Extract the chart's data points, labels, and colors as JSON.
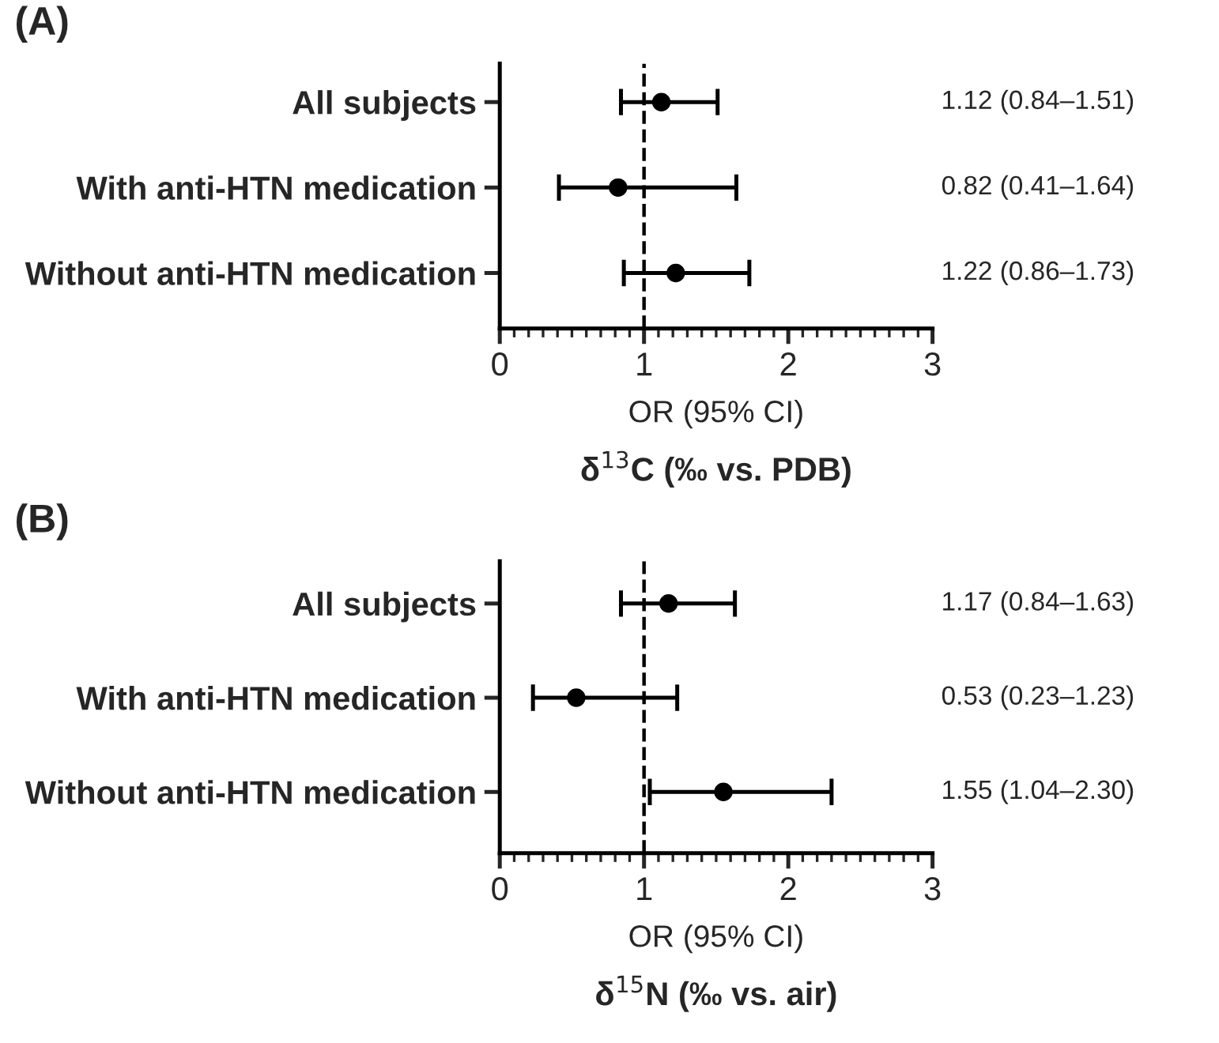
{
  "chart_data": [
    {
      "type": "scatter",
      "title": "(A)",
      "orientation": "horizontal",
      "categories": [
        "All subjects",
        "With anti-HTN medication",
        "Without anti-HTN medication"
      ],
      "series": [
        {
          "color": "#000000",
          "values": [
            1.12,
            0.82,
            1.22
          ],
          "errors": [
            [
              0.84,
              1.51
            ],
            [
              0.41,
              1.64
            ],
            [
              0.86,
              1.73
            ]
          ],
          "value_labels": [
            "1.12 (0.84–1.51)",
            "0.82 (0.41–1.64)",
            "1.22 (0.86–1.73)"
          ]
        }
      ],
      "xlim": [
        0,
        3
      ],
      "xticks": [
        0,
        1,
        2,
        3
      ],
      "xlabel": "OR (95% CI)",
      "marker": "circle",
      "grid": false,
      "legend": false,
      "ref_lines": [
        {
          "axis": "x",
          "value": 1,
          "line_style": "dashed",
          "color": "#000000"
        }
      ],
      "annotations": [
        "δ$^{13}$C (‰ vs. PDB)"
      ]
    },
    {
      "type": "scatter",
      "title": "(B)",
      "orientation": "horizontal",
      "categories": [
        "All subjects",
        "With anti-HTN medication",
        "Without anti-HTN medication"
      ],
      "series": [
        {
          "color": "#000000",
          "values": [
            1.17,
            0.53,
            1.55
          ],
          "errors": [
            [
              0.84,
              1.63
            ],
            [
              0.23,
              1.23
            ],
            [
              1.04,
              2.3
            ]
          ],
          "value_labels": [
            "1.17 (0.84–1.63)",
            "0.53 (0.23–1.23)",
            "1.55 (1.04–2.30)"
          ]
        }
      ],
      "xlim": [
        0,
        3
      ],
      "xticks": [
        0,
        1,
        2,
        3
      ],
      "xlabel": "OR (95% CI)",
      "marker": "circle",
      "grid": false,
      "legend": false,
      "ref_lines": [
        {
          "axis": "x",
          "value": 1,
          "line_style": "dashed",
          "color": "#000000"
        }
      ],
      "annotations": [
        "δ$^{15}$N (‰ vs. air)"
      ]
    }
  ]
}
